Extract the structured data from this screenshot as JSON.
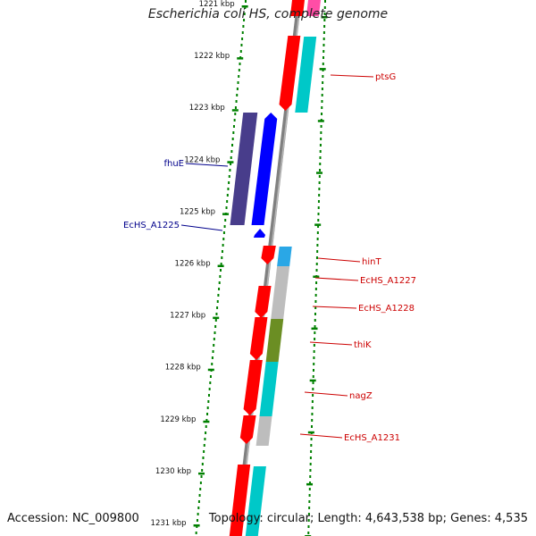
{
  "title": "Escherichia coli HS, complete genome",
  "accession": "Accession: NC_009800",
  "summary": "Topology: circular; Length: 4,643,538 bp; Genes: 4,535",
  "ticks": [
    "1221 kbp",
    "1222 kbp",
    "1223 kbp",
    "1224 kbp",
    "1225 kbp",
    "1226 kbp",
    "1227 kbp",
    "1228 kbp",
    "1229 kbp",
    "1230 kbp",
    "1231 kbp"
  ],
  "colors": {
    "cds_forward": "#ff0000",
    "cds_reverse": "#0000ff",
    "reverse_strand_cog": "#483d8b",
    "cog_cyan": "#00c8c8",
    "cog_gray": "#bdbdbd",
    "cog_olive": "#6b8e23",
    "cog_skyblue": "#2aa7e6",
    "cog_pink": "#ff4da6",
    "tick_green": "#008000",
    "backbone": "#808080",
    "label_forward": "#cc0000",
    "label_reverse": "#00008b"
  },
  "features": [
    {
      "name": "ptsG",
      "strand": "forward",
      "cog": "cyan"
    },
    {
      "name": "fhuE",
      "strand": "reverse",
      "cog": "slateblue"
    },
    {
      "name": "EcHS_A1225",
      "strand": "reverse",
      "cog": "none"
    },
    {
      "name": "hinT",
      "strand": "forward",
      "cog": "skyblue"
    },
    {
      "name": "EcHS_A1227",
      "strand": "forward",
      "cog": "gray"
    },
    {
      "name": "EcHS_A1228",
      "strand": "forward",
      "cog": "gray"
    },
    {
      "name": "thiK",
      "strand": "forward",
      "cog": "olive"
    },
    {
      "name": "nagZ",
      "strand": "forward",
      "cog": "cyan"
    },
    {
      "name": "EcHS_A1231",
      "strand": "forward",
      "cog": "gray"
    }
  ]
}
